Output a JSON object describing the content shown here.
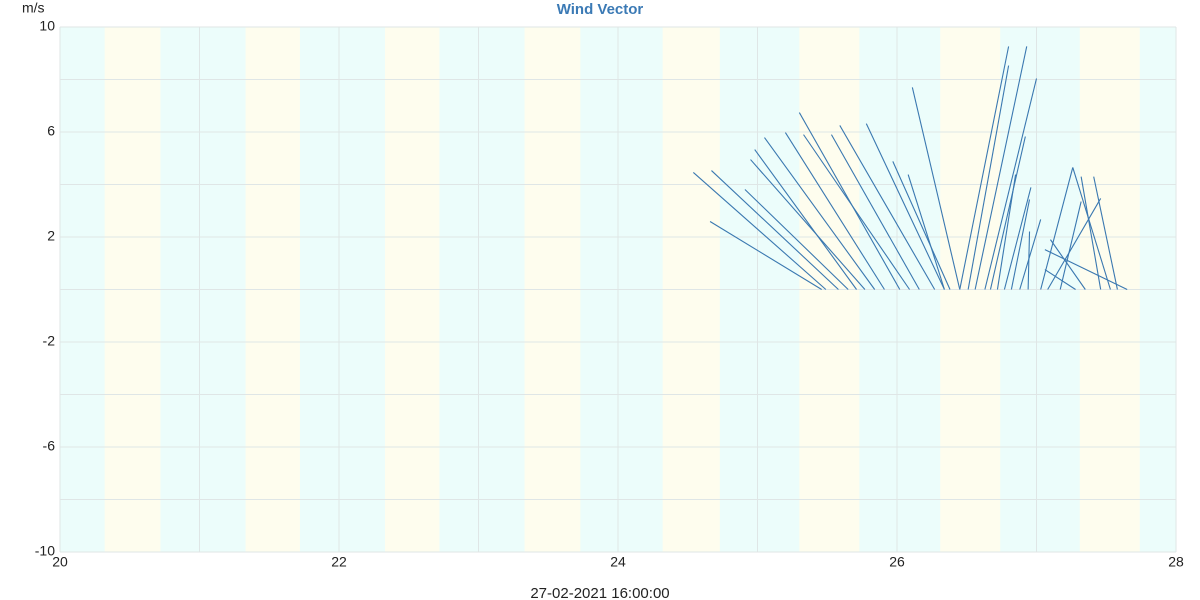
{
  "chart_data": {
    "type": "vector",
    "title": "Wind Vector",
    "y_unit": "m/s",
    "xlabel": "27-02-2021 16:00:00",
    "xlim": [
      20,
      28
    ],
    "xticks": [
      20,
      22,
      24,
      26,
      28
    ],
    "x_minor_ticks": [
      21,
      23,
      25,
      27
    ],
    "ylim": [
      -10,
      10
    ],
    "yticks": [
      10,
      6,
      2,
      -2,
      -6,
      -10
    ],
    "y_minor_ticks": [
      8,
      4,
      0,
      -4,
      -8
    ],
    "grid": true,
    "background_color": "#ecfdfb",
    "band_color": "#fefdee",
    "bands": [
      [
        20.32,
        20.72
      ],
      [
        21.33,
        21.72
      ],
      [
        22.33,
        22.72
      ],
      [
        23.33,
        23.73
      ],
      [
        24.32,
        24.73
      ],
      [
        25.3,
        25.73
      ],
      [
        26.31,
        26.74
      ],
      [
        27.31,
        27.74
      ]
    ],
    "series": [
      {
        "color": "#3a78b0",
        "x": [
          25.46,
          25.49,
          25.58,
          25.65,
          25.71,
          25.77,
          25.84,
          25.91,
          26.02,
          26.09,
          26.16,
          26.27,
          26.34,
          26.38,
          26.45,
          26.34,
          26.45,
          26.51,
          26.56,
          26.63,
          26.67,
          26.72,
          26.77,
          26.82,
          26.88,
          26.94,
          27.03,
          27.08,
          27.17,
          27.28,
          27.35,
          27.46,
          27.53,
          27.58,
          27.65
        ],
        "tip_x": [
          24.66,
          24.54,
          24.67,
          24.91,
          24.98,
          24.95,
          25.05,
          25.2,
          25.3,
          25.33,
          25.53,
          25.59,
          25.78,
          25.97,
          26.11,
          26.08,
          26.8,
          26.8,
          26.93,
          27.0,
          26.92,
          26.85,
          26.96,
          26.95,
          27.03,
          26.95,
          27.26,
          27.46,
          27.32,
          27.06,
          27.1,
          27.32,
          27.26,
          27.41,
          27.06
        ],
        "tip_y": [
          2.59,
          4.46,
          4.53,
          3.81,
          5.33,
          4.95,
          5.79,
          5.98,
          6.74,
          5.9,
          5.9,
          6.25,
          6.32,
          4.88,
          7.7,
          4.38,
          9.26,
          8.53,
          9.26,
          8.04,
          5.83,
          4.38,
          3.89,
          3.43,
          2.67,
          2.21,
          4.65,
          3.47,
          3.35,
          0.76,
          1.9,
          4.3,
          4.65,
          4.3,
          1.52
        ]
      }
    ]
  }
}
